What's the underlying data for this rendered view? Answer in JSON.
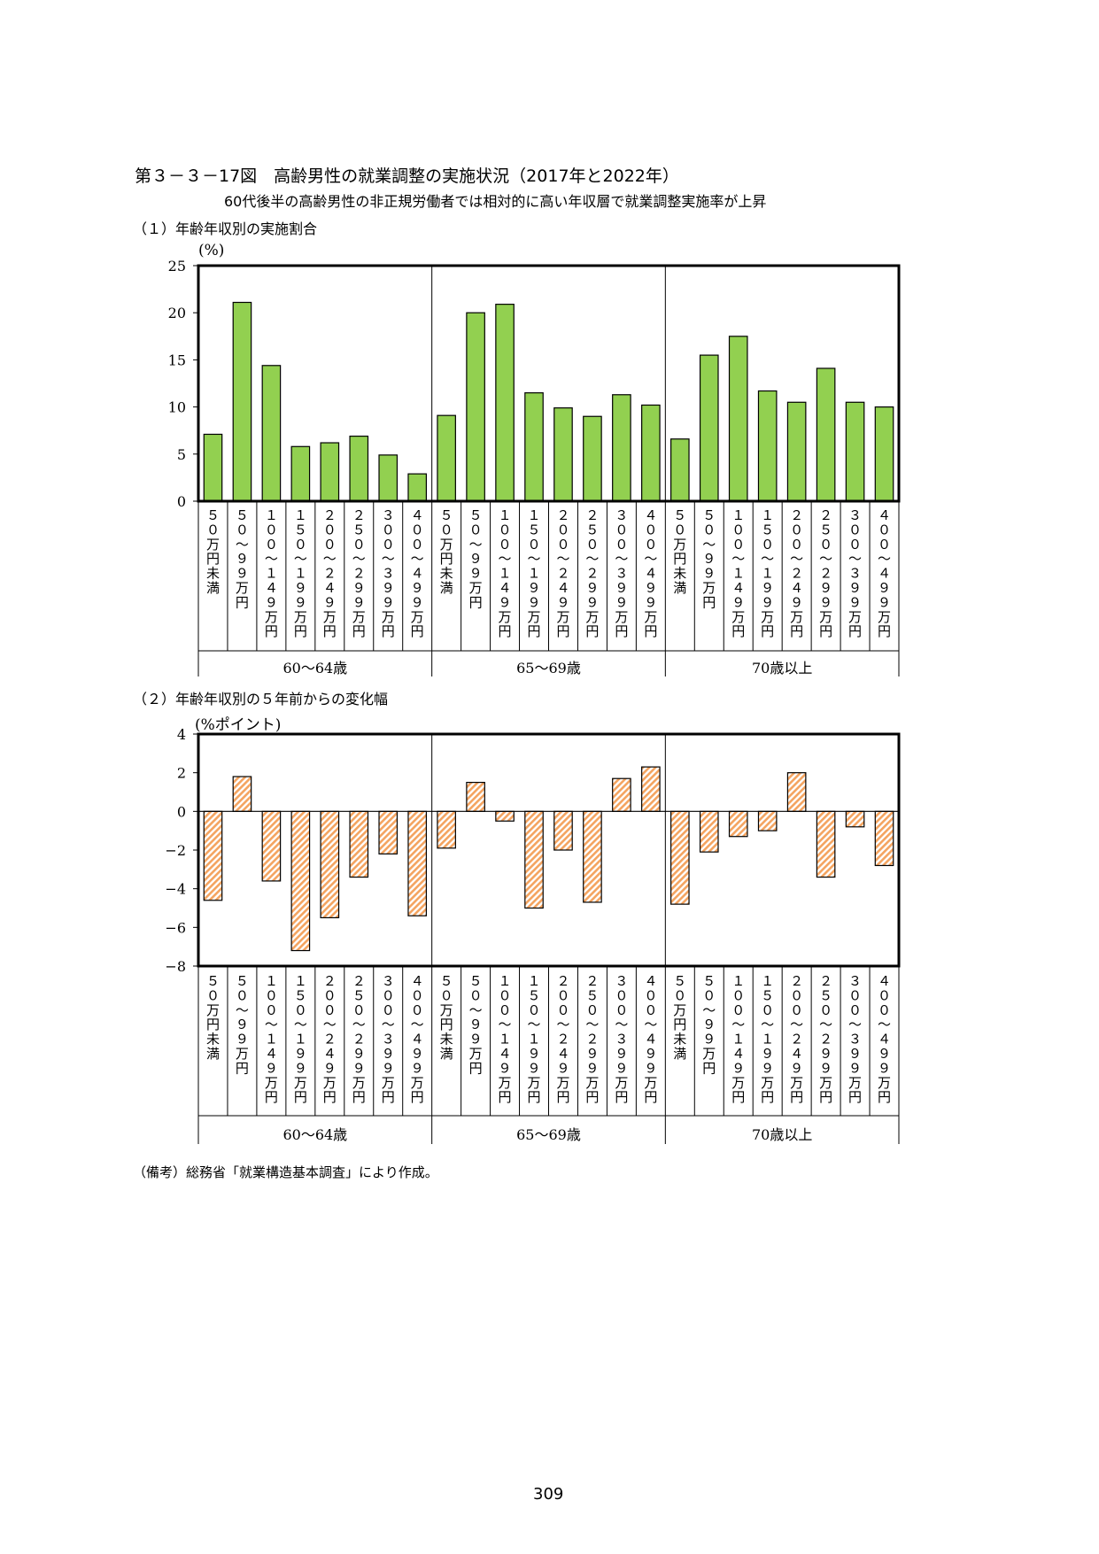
{
  "title": "第３－３－17図　高齢男性の就業調整の実施状況（2017年と2022年）",
  "subtitle": "60代後半の高齢男性の非正規労働者では相対的に高い年収層で就業調整実施率が上昇",
  "section1": "（１）年齢年収別の実施割合",
  "section2": "（２）年齢年収別の５年前からの変化幅",
  "unit1": "(%)",
  "unit2": "(%ポイント)",
  "note": "（備考）総務省「就業構造基本調査」により作成。",
  "page_number": "309",
  "colors": {
    "bar1": "#92d050",
    "bar2_stripe": "#f4a460",
    "axis": "#000000"
  },
  "chart_data": [
    {
      "type": "bar",
      "categories": [
        "５０万円未満",
        "５０～９９万円",
        "１００～１４９万円",
        "１５０～１９９万円",
        "２００～２４９万円",
        "２５０～２９９万円",
        "３００～３９９万円",
        "４００～４９９万円"
      ],
      "groups": [
        "60～64歳",
        "65～69歳",
        "70歳以上"
      ],
      "series": [
        {
          "values": [
            7.1,
            21.1,
            14.4,
            5.8,
            6.2,
            6.9,
            4.9,
            2.9
          ]
        },
        {
          "values": [
            9.1,
            20.0,
            20.9,
            11.5,
            9.9,
            9.0,
            11.3,
            10.2
          ]
        },
        {
          "values": [
            6.6,
            15.5,
            17.5,
            11.7,
            10.5,
            14.1,
            10.5,
            10.0
          ]
        }
      ],
      "ylim": [
        0,
        25
      ],
      "yticks": [
        "0",
        "5",
        "10",
        "15",
        "20",
        "25"
      ]
    },
    {
      "type": "bar",
      "categories": [
        "５０万円未満",
        "５０～９９万円",
        "１００～１４９万円",
        "１５０～１９９万円",
        "２００～２４９万円",
        "２５０～２９９万円",
        "３００～３９９万円",
        "４００～４９９万円"
      ],
      "groups": [
        "60～64歳",
        "65～69歳",
        "70歳以上"
      ],
      "series": [
        {
          "values": [
            -4.6,
            1.8,
            -3.6,
            -7.2,
            -5.5,
            -3.4,
            -2.2,
            -5.4
          ]
        },
        {
          "values": [
            -1.9,
            1.5,
            -0.5,
            -5.0,
            -2.0,
            -4.7,
            1.7,
            2.3
          ]
        },
        {
          "values": [
            -4.8,
            -2.1,
            -1.3,
            -1.0,
            2.0,
            -3.4,
            -0.8,
            -2.8
          ]
        }
      ],
      "ylim": [
        -8,
        4
      ],
      "yticks": [
        "4",
        "2",
        "0",
        "−2",
        "−4",
        "−6",
        "−8"
      ]
    }
  ]
}
